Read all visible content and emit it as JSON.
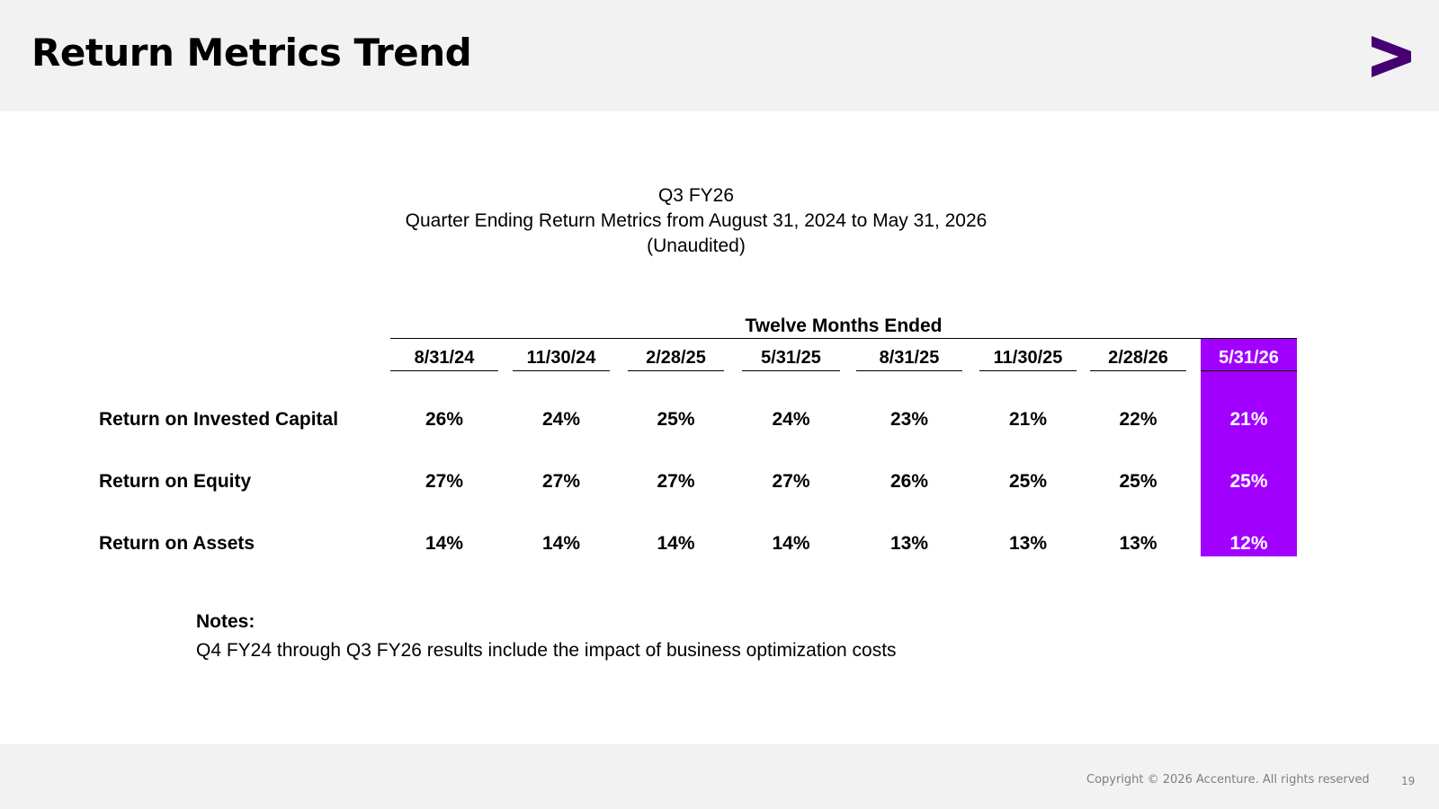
{
  "header": {
    "title": "Return Metrics Trend",
    "logo_icon": "accenture-greater-than-logo",
    "logo_color": "#460073"
  },
  "subtitle": {
    "line1": "Q3 FY26",
    "line2": "Quarter Ending Return Metrics from August 31, 2024 to May 31, 2026",
    "line3": "(Unaudited)"
  },
  "table": {
    "group_header": "Twelve Months Ended",
    "columns": [
      "8/31/24",
      "11/30/24",
      "2/28/25",
      "5/31/25",
      "8/31/25",
      "11/30/25",
      "2/28/26",
      "5/31/26"
    ],
    "highlight_color": "#a100ff",
    "rows": [
      {
        "label": "Return on Invested Capital",
        "values": [
          "26%",
          "24%",
          "25%",
          "24%",
          "23%",
          "21%",
          "22%",
          "21%"
        ]
      },
      {
        "label": "Return on Equity",
        "values": [
          "27%",
          "27%",
          "27%",
          "27%",
          "26%",
          "25%",
          "25%",
          "25%"
        ]
      },
      {
        "label": "Return on Assets",
        "values": [
          "14%",
          "14%",
          "14%",
          "14%",
          "13%",
          "13%",
          "13%",
          "12%"
        ]
      }
    ]
  },
  "notes": {
    "title": "Notes:",
    "text": "Q4 FY24 through Q3 FY26 results include the impact of business optimization costs"
  },
  "footer": {
    "copyright": "Copyright © 2026 Accenture. All rights reserved",
    "page_number": "19"
  }
}
